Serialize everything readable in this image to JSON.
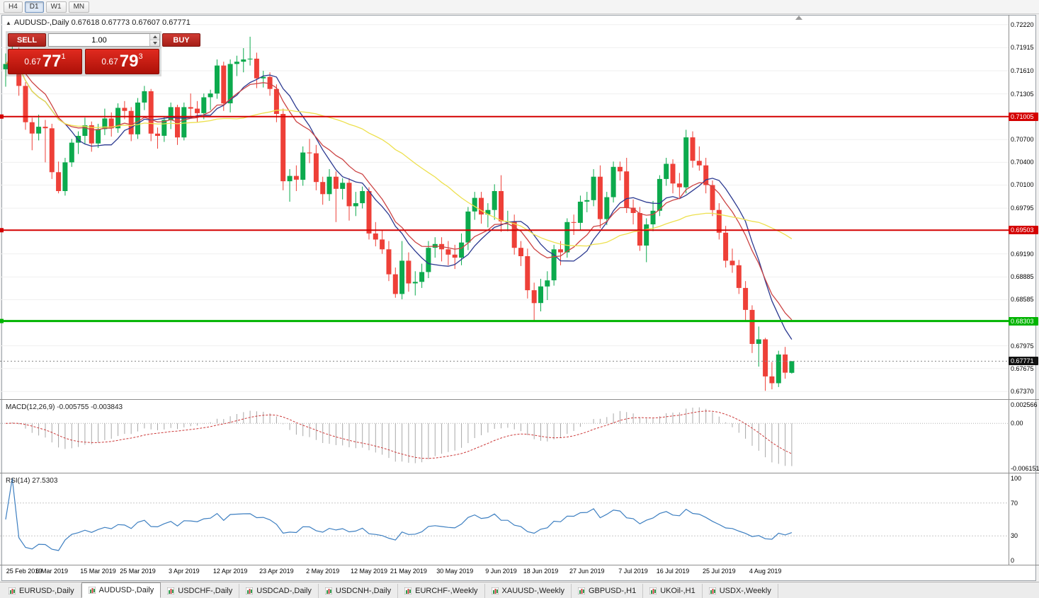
{
  "window": {
    "timeframes": [
      {
        "label": "H4",
        "active": false
      },
      {
        "label": "D1",
        "active": true
      },
      {
        "label": "W1",
        "active": false
      },
      {
        "label": "MN",
        "active": false
      }
    ]
  },
  "chart": {
    "info": "AUDUSD-,Daily  0.67618 0.67773 0.67607 0.67771",
    "symbol": "AUDUSD-",
    "period": "Daily"
  },
  "trade_panel": {
    "sell_label": "SELL",
    "buy_label": "BUY",
    "volume": "1.00",
    "sell_price": {
      "prefix": "0.67",
      "big": "77",
      "sup": "1"
    },
    "buy_price": {
      "prefix": "0.67",
      "big": "79",
      "sup": "3"
    }
  },
  "chart_data": {
    "type": "candlestick",
    "symbol": "AUDUSD",
    "timeframe": "Daily",
    "ohlc_current": {
      "open": 0.67618,
      "high": 0.67773,
      "low": 0.67607,
      "close": 0.67771
    },
    "current_price": 0.67771,
    "price_axis": {
      "ylim": [
        0.6727,
        0.7234
      ],
      "labels": [
        {
          "text": "0.72220",
          "price": 0.7222,
          "type": "grid"
        },
        {
          "text": "0.71915",
          "price": 0.71915,
          "type": "grid"
        },
        {
          "text": "0.71610",
          "price": 0.7161,
          "type": "grid"
        },
        {
          "text": "0.71305",
          "price": 0.71305,
          "type": "grid"
        },
        {
          "text": "0.71005",
          "price": 0.71005,
          "type": "res"
        },
        {
          "text": "0.70700",
          "price": 0.707,
          "type": "grid"
        },
        {
          "text": "0.70400",
          "price": 0.704,
          "type": "grid"
        },
        {
          "text": "0.70100",
          "price": 0.701,
          "type": "grid"
        },
        {
          "text": "0.69795",
          "price": 0.69795,
          "type": "grid"
        },
        {
          "text": "0.69503",
          "price": 0.69503,
          "type": "res"
        },
        {
          "text": "0.69190",
          "price": 0.6919,
          "type": "grid"
        },
        {
          "text": "0.68885",
          "price": 0.68885,
          "type": "grid"
        },
        {
          "text": "0.68585",
          "price": 0.68585,
          "type": "grid"
        },
        {
          "text": "0.68303",
          "price": 0.68303,
          "type": "sup"
        },
        {
          "text": "0.67975",
          "price": 0.67975,
          "type": "grid"
        },
        {
          "text": "0.67771",
          "price": 0.67771,
          "type": "current"
        },
        {
          "text": "0.67675",
          "price": 0.67675,
          "type": "grid"
        },
        {
          "text": "0.67370",
          "price": 0.6737,
          "type": "grid"
        }
      ]
    },
    "hlines": [
      {
        "price": 0.71005,
        "color": "#d40000",
        "width": 2,
        "label": "0.71005",
        "kind": "resistance"
      },
      {
        "price": 0.69503,
        "color": "#d40000",
        "width": 2,
        "label": "0.69503",
        "kind": "resistance"
      },
      {
        "price": 0.68303,
        "color": "#00b400",
        "width": 3,
        "label": "0.68303",
        "kind": "support"
      }
    ],
    "moving_averages": [
      {
        "name": "fast",
        "method": "sma",
        "period": 10,
        "color": "#2b3990"
      },
      {
        "name": "mid",
        "method": "ema",
        "period": 13,
        "color": "#cc4444"
      },
      {
        "name": "slow",
        "method": "sma",
        "period": 34,
        "color": "#ede04e"
      }
    ],
    "colors": {
      "up": "#0caa4d",
      "down": "#ee4038",
      "grid": "#efefef",
      "macd_hist": "#a8a8a8",
      "macd_signal": "#cc3a3a",
      "rsi": "#3d7fc1",
      "rsi_levels": "#c8c8c8",
      "current_line": "#888888"
    },
    "candles": [
      [
        0.7163,
        0.7184,
        0.714,
        0.717
      ],
      [
        0.717,
        0.7195,
        0.7162,
        0.7188
      ],
      [
        0.7188,
        0.7192,
        0.7128,
        0.7141
      ],
      [
        0.7141,
        0.7146,
        0.7083,
        0.7093
      ],
      [
        0.7093,
        0.7099,
        0.7056,
        0.7078
      ],
      [
        0.7078,
        0.7103,
        0.7069,
        0.7087
      ],
      [
        0.7087,
        0.7096,
        0.704,
        0.7085
      ],
      [
        0.7085,
        0.7091,
        0.7018,
        0.7027
      ],
      [
        0.7027,
        0.7041,
        0.6999,
        0.7002
      ],
      [
        0.7002,
        0.7046,
        0.6996,
        0.704
      ],
      [
        0.704,
        0.7071,
        0.7034,
        0.7066
      ],
      [
        0.7066,
        0.7081,
        0.7051,
        0.7075
      ],
      [
        0.7075,
        0.7099,
        0.7064,
        0.7089
      ],
      [
        0.7089,
        0.7094,
        0.7054,
        0.7065
      ],
      [
        0.7065,
        0.7091,
        0.7059,
        0.7084
      ],
      [
        0.7084,
        0.7111,
        0.7076,
        0.7098
      ],
      [
        0.7098,
        0.7106,
        0.7074,
        0.7085
      ],
      [
        0.7085,
        0.7118,
        0.7079,
        0.7112
      ],
      [
        0.7112,
        0.7121,
        0.7097,
        0.7108
      ],
      [
        0.7108,
        0.7113,
        0.7068,
        0.7077
      ],
      [
        0.7077,
        0.7125,
        0.7071,
        0.7119
      ],
      [
        0.7119,
        0.7141,
        0.7109,
        0.7134
      ],
      [
        0.7134,
        0.7137,
        0.7068,
        0.7078
      ],
      [
        0.7078,
        0.7086,
        0.7058,
        0.7075
      ],
      [
        0.7075,
        0.7101,
        0.7067,
        0.7096
      ],
      [
        0.7096,
        0.7119,
        0.7084,
        0.7113
      ],
      [
        0.7113,
        0.7116,
        0.7063,
        0.7073
      ],
      [
        0.7073,
        0.7119,
        0.7069,
        0.7113
      ],
      [
        0.7113,
        0.7131,
        0.7099,
        0.7111
      ],
      [
        0.7111,
        0.7121,
        0.7093,
        0.7105
      ],
      [
        0.7105,
        0.7131,
        0.7097,
        0.7126
      ],
      [
        0.7126,
        0.7136,
        0.7109,
        0.7131
      ],
      [
        0.7131,
        0.7176,
        0.7124,
        0.7168
      ],
      [
        0.7168,
        0.7173,
        0.7108,
        0.7118
      ],
      [
        0.7118,
        0.7176,
        0.7106,
        0.717
      ],
      [
        0.717,
        0.7181,
        0.7154,
        0.7173
      ],
      [
        0.7173,
        0.7191,
        0.7159,
        0.7176
      ],
      [
        0.7176,
        0.7206,
        0.7168,
        0.7177
      ],
      [
        0.7177,
        0.7185,
        0.7138,
        0.7151
      ],
      [
        0.7151,
        0.7161,
        0.7139,
        0.7153
      ],
      [
        0.7153,
        0.7159,
        0.7128,
        0.7137
      ],
      [
        0.7137,
        0.7143,
        0.7093,
        0.7104
      ],
      [
        0.7104,
        0.7111,
        0.7003,
        0.7015
      ],
      [
        0.7015,
        0.7031,
        0.6988,
        0.7022
      ],
      [
        0.7022,
        0.7036,
        0.7002,
        0.7017
      ],
      [
        0.7017,
        0.7061,
        0.7009,
        0.7053
      ],
      [
        0.7053,
        0.7071,
        0.7039,
        0.7052
      ],
      [
        0.7052,
        0.7063,
        0.7003,
        0.7014
      ],
      [
        0.7014,
        0.7021,
        0.6984,
        0.6998
      ],
      [
        0.6998,
        0.7031,
        0.6989,
        0.7021
      ],
      [
        0.7021,
        0.7028,
        0.6961,
        0.7005
      ],
      [
        0.7005,
        0.7019,
        0.6991,
        0.7013
      ],
      [
        0.7013,
        0.7019,
        0.6963,
        0.6982
      ],
      [
        0.6982,
        0.7001,
        0.6969,
        0.6986
      ],
      [
        0.6986,
        0.7008,
        0.6979,
        0.7002
      ],
      [
        0.7002,
        0.7007,
        0.6938,
        0.6946
      ],
      [
        0.6946,
        0.6961,
        0.6929,
        0.6938
      ],
      [
        0.6938,
        0.6951,
        0.6919,
        0.6925
      ],
      [
        0.6925,
        0.6936,
        0.6883,
        0.6892
      ],
      [
        0.6892,
        0.6901,
        0.6861,
        0.6866
      ],
      [
        0.6866,
        0.6936,
        0.6859,
        0.691
      ],
      [
        0.691,
        0.6921,
        0.6869,
        0.688
      ],
      [
        0.688,
        0.6896,
        0.6864,
        0.6882
      ],
      [
        0.6882,
        0.6906,
        0.6874,
        0.6895
      ],
      [
        0.6895,
        0.6936,
        0.6887,
        0.6927
      ],
      [
        0.6927,
        0.6941,
        0.6914,
        0.6932
      ],
      [
        0.6932,
        0.6941,
        0.6909,
        0.6925
      ],
      [
        0.6925,
        0.6936,
        0.6904,
        0.6918
      ],
      [
        0.6918,
        0.6931,
        0.6899,
        0.6914
      ],
      [
        0.6914,
        0.6946,
        0.6904,
        0.6934
      ],
      [
        0.6934,
        0.6981,
        0.6924,
        0.6975
      ],
      [
        0.6975,
        0.7001,
        0.6964,
        0.6993
      ],
      [
        0.6993,
        0.7001,
        0.6959,
        0.6971
      ],
      [
        0.6971,
        0.6986,
        0.6954,
        0.6977
      ],
      [
        0.6977,
        0.7011,
        0.6964,
        0.7002
      ],
      [
        0.7002,
        0.7023,
        0.6948,
        0.6962
      ],
      [
        0.6962,
        0.6976,
        0.6949,
        0.6962
      ],
      [
        0.6962,
        0.6971,
        0.6918,
        0.6927
      ],
      [
        0.6927,
        0.6936,
        0.6903,
        0.6916
      ],
      [
        0.6916,
        0.6926,
        0.686,
        0.6871
      ],
      [
        0.6871,
        0.6881,
        0.6831,
        0.6854
      ],
      [
        0.6854,
        0.6886,
        0.6843,
        0.6876
      ],
      [
        0.6876,
        0.6896,
        0.6858,
        0.6884
      ],
      [
        0.6884,
        0.6931,
        0.6877,
        0.6925
      ],
      [
        0.6925,
        0.6936,
        0.6904,
        0.6921
      ],
      [
        0.6921,
        0.6966,
        0.6914,
        0.6961
      ],
      [
        0.6961,
        0.6971,
        0.6944,
        0.696
      ],
      [
        0.696,
        0.6996,
        0.6951,
        0.6988
      ],
      [
        0.6988,
        0.7001,
        0.6974,
        0.699
      ],
      [
        0.699,
        0.7031,
        0.6982,
        0.7021
      ],
      [
        0.7021,
        0.7036,
        0.6953,
        0.6965
      ],
      [
        0.6965,
        0.7001,
        0.6957,
        0.6994
      ],
      [
        0.6994,
        0.7041,
        0.6987,
        0.7034
      ],
      [
        0.7034,
        0.7041,
        0.7016,
        0.7028
      ],
      [
        0.7028,
        0.7046,
        0.6973,
        0.698
      ],
      [
        0.698,
        0.6991,
        0.6958,
        0.6973
      ],
      [
        0.6973,
        0.6981,
        0.6923,
        0.693
      ],
      [
        0.693,
        0.6966,
        0.6908,
        0.6958
      ],
      [
        0.6958,
        0.6989,
        0.6949,
        0.6976
      ],
      [
        0.6976,
        0.7023,
        0.6969,
        0.7018
      ],
      [
        0.7018,
        0.7046,
        0.7009,
        0.7038
      ],
      [
        0.7038,
        0.7044,
        0.6999,
        0.7012
      ],
      [
        0.7012,
        0.7026,
        0.6994,
        0.7007
      ],
      [
        0.7007,
        0.7083,
        0.6999,
        0.7073
      ],
      [
        0.7073,
        0.7081,
        0.7033,
        0.7042
      ],
      [
        0.7042,
        0.7061,
        0.7029,
        0.7036
      ],
      [
        0.7036,
        0.7046,
        0.6999,
        0.701
      ],
      [
        0.701,
        0.7016,
        0.6969,
        0.6977
      ],
      [
        0.6977,
        0.6986,
        0.6938,
        0.6947
      ],
      [
        0.6947,
        0.6956,
        0.6901,
        0.691
      ],
      [
        0.691,
        0.6926,
        0.6894,
        0.6904
      ],
      [
        0.6904,
        0.6911,
        0.6866,
        0.6874
      ],
      [
        0.6874,
        0.6883,
        0.6831,
        0.6845
      ],
      [
        0.6845,
        0.6851,
        0.6788,
        0.68
      ],
      [
        0.68,
        0.6823,
        0.677,
        0.6806
      ],
      [
        0.6806,
        0.6808,
        0.6738,
        0.6757
      ],
      [
        0.6757,
        0.6776,
        0.674,
        0.6748
      ],
      [
        0.6748,
        0.6791,
        0.6743,
        0.6786
      ],
      [
        0.6786,
        0.6796,
        0.6754,
        0.6762
      ],
      [
        0.67618,
        0.67773,
        0.67607,
        0.67771
      ]
    ],
    "date_axis": [
      {
        "label": "25 Feb 2019",
        "index": 0
      },
      {
        "label": "6 Mar 2019",
        "index": 7
      },
      {
        "label": "15 Mar 2019",
        "index": 14
      },
      {
        "label": "25 Mar 2019",
        "index": 20
      },
      {
        "label": "3 Apr 2019",
        "index": 27
      },
      {
        "label": "12 Apr 2019",
        "index": 34
      },
      {
        "label": "23 Apr 2019",
        "index": 41
      },
      {
        "label": "2 May 2019",
        "index": 48
      },
      {
        "label": "12 May 2019",
        "index": 55
      },
      {
        "label": "21 May 2019",
        "index": 61
      },
      {
        "label": "30 May 2019",
        "index": 68
      },
      {
        "label": "9 Jun 2019",
        "index": 75
      },
      {
        "label": "18 Jun 2019",
        "index": 81
      },
      {
        "label": "27 Jun 2019",
        "index": 88
      },
      {
        "label": "7 Jul 2019",
        "index": 95
      },
      {
        "label": "16 Jul 2019",
        "index": 101
      },
      {
        "label": "25 Jul 2019",
        "index": 108
      },
      {
        "label": "4 Aug 2019",
        "index": 115
      }
    ]
  },
  "macd": {
    "label": "MACD(12,26,9) -0.005755 -0.003843",
    "params": [
      12,
      26,
      9
    ],
    "value": -0.005755,
    "signal_value": -0.003843,
    "ylim": [
      -0.0067,
      0.0031
    ],
    "axis": [
      {
        "text": "0.002566",
        "value": 0.002566
      },
      {
        "text": "0.00",
        "value": 0
      },
      {
        "text": "-0.006151",
        "value": -0.006151
      }
    ]
  },
  "rsi": {
    "label": "RSI(14) 27.5303",
    "period": 14,
    "value": 27.5303,
    "levels": [
      70,
      30
    ],
    "axis": [
      {
        "text": "100",
        "value": 100
      },
      {
        "text": "70",
        "value": 70
      },
      {
        "text": "30",
        "value": 30
      },
      {
        "text": "0",
        "value": 0
      }
    ]
  },
  "tabs": [
    {
      "label": "EURUSD-,Daily",
      "active": false
    },
    {
      "label": "AUDUSD-,Daily",
      "active": true
    },
    {
      "label": "USDCHF-,Daily",
      "active": false
    },
    {
      "label": "USDCAD-,Daily",
      "active": false
    },
    {
      "label": "USDCNH-,Daily",
      "active": false
    },
    {
      "label": "EURCHF-,Weekly",
      "active": false
    },
    {
      "label": "XAUUSD-,Weekly",
      "active": false
    },
    {
      "label": "GBPUSD-,H1",
      "active": false
    },
    {
      "label": "UKOil-,H1",
      "active": false
    },
    {
      "label": "USDX-,Weekly",
      "active": false
    }
  ]
}
